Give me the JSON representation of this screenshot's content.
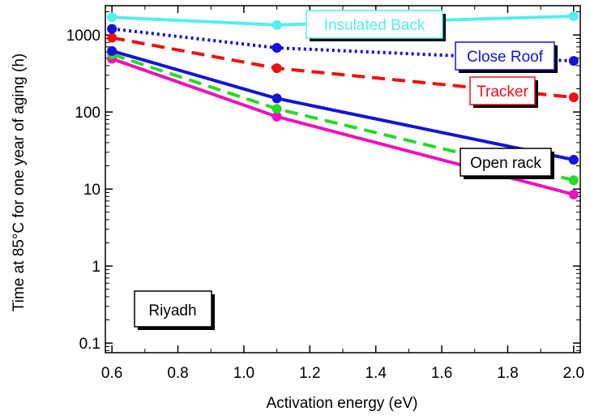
{
  "chart_data": {
    "type": "line",
    "title": "",
    "xlabel": "Activation energy (eV)",
    "ylabel": "Time at 85°C for one year of aging (h)",
    "xlim": [
      0.58,
      2.02
    ],
    "ylim": [
      0.075,
      2400
    ],
    "yscale": "log",
    "grid": false,
    "x": [
      0.6,
      1.1,
      2.0
    ],
    "xticks": [
      "0.6",
      "0.8",
      "1.0",
      "1.2",
      "1.4",
      "1.6",
      "1.8",
      "2.0"
    ],
    "yticks": [
      "0.1",
      "1",
      "10",
      "100",
      "1000"
    ],
    "annotation": "Riyadh",
    "series": [
      {
        "name": "Insulated Back",
        "color": "#55eeee",
        "dash": "solid",
        "values": [
          1700,
          1350,
          1750
        ]
      },
      {
        "name": "Close Roof",
        "color": "#1414d8",
        "dash": "dotted",
        "values": [
          1200,
          680,
          460
        ]
      },
      {
        "name": "Tracker",
        "color": "#ee1111",
        "dash": "dashed",
        "values": [
          920,
          370,
          155
        ]
      },
      {
        "name": "Open rack",
        "color": "#1414d8",
        "dash": "solid",
        "values": [
          620,
          150,
          24
        ]
      },
      {
        "name": "",
        "color": "#22dd22",
        "dash": "dashed",
        "values": [
          560,
          110,
          13
        ]
      },
      {
        "name": "",
        "color": "#ee11bb",
        "dash": "solid",
        "values": [
          490,
          87,
          8.5
        ]
      }
    ]
  }
}
